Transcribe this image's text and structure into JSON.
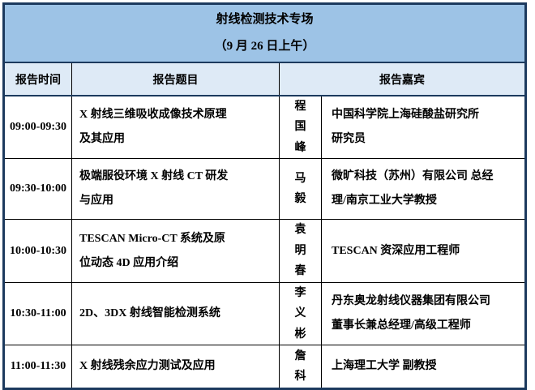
{
  "table": {
    "title_line1": "射线检测技术专场",
    "title_line2": "（9 月 26 日上午）",
    "columns": {
      "time": "报告时间",
      "topic": "报告题目",
      "guest": "报告嘉宾"
    },
    "colors": {
      "title_bg": "#9dc3e6",
      "header_bg": "#deeaf6",
      "outer_border": "#1c3a5e",
      "inner_border": "#000000",
      "text": "#000000"
    },
    "rows": [
      {
        "time": "09:00-09:30",
        "title": [
          "X 射线三维吸收成像技术原理",
          "及其应用"
        ],
        "speaker": "程国峰",
        "affiliation": [
          "中国科学院上海硅酸盐研究所",
          "研究员"
        ]
      },
      {
        "time": "09:30-10:00",
        "title": [
          "极端服役环境 X 射线 CT 研发",
          "与应用"
        ],
        "speaker": "马毅",
        "affiliation": [
          "微旷科技（苏州）有限公司 总经",
          "理/南京工业大学教授"
        ]
      },
      {
        "time": "10:00-10:30",
        "title": [
          "TESCAN Micro-CT 系统及原",
          "位动态 4D 应用介绍"
        ],
        "speaker": "袁明春",
        "affiliation": [
          "TESCAN 资深应用工程师"
        ]
      },
      {
        "time": "10:30-11:00",
        "title": [
          "2D、3DX 射线智能检测系统"
        ],
        "speaker": "李义彬",
        "affiliation": [
          "丹东奥龙射线仪器集团有限公司",
          "董事长兼总经理/高级工程师"
        ]
      },
      {
        "time": "11:00-11:30",
        "title": [
          "X 射线残余应力测试及应用"
        ],
        "speaker": "詹科",
        "affiliation": [
          "上海理工大学 副教授"
        ]
      }
    ]
  }
}
